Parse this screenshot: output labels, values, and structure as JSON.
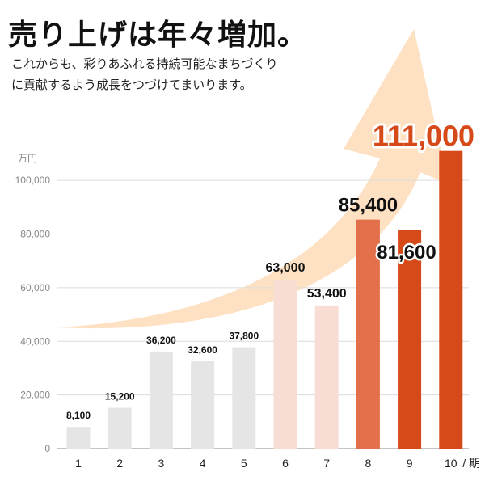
{
  "header": {
    "title": "売り上げは年々増加。",
    "subtitle_line1": "これからも、彩りあふれる持続可能なまちづくり",
    "subtitle_line2": "に貢献するよう成長をつづけてまいります。"
  },
  "chart_data": {
    "type": "bar",
    "ylabel": "万円",
    "xlabel": "期",
    "ylim": [
      0,
      110000
    ],
    "yticks": [
      0,
      20000,
      40000,
      60000,
      80000,
      100000
    ],
    "ytick_labels": [
      "0",
      "20,000",
      "40,000",
      "60,000",
      "80,000",
      "100,000"
    ],
    "grid": true,
    "categories": [
      "1",
      "2",
      "3",
      "4",
      "5",
      "6",
      "7",
      "8",
      "9",
      "10"
    ],
    "values": [
      8100,
      15200,
      36200,
      32600,
      37800,
      63000,
      53400,
      85400,
      81600,
      111000
    ],
    "value_labels": [
      "8,100",
      "15,200",
      "36,200",
      "32,600",
      "37,800",
      "63,000",
      "53,400",
      "85,400",
      "81,600",
      "111,000"
    ],
    "bar_colors": [
      "#e5e5e5",
      "#e5e5e5",
      "#e5e5e5",
      "#e5e5e5",
      "#e5e5e5",
      "#f7ddd3",
      "#f7ddd3",
      "#e3704a",
      "#d64a19",
      "#d64a19"
    ],
    "label_colors": [
      "#111111",
      "#111111",
      "#111111",
      "#111111",
      "#111111",
      "#111111",
      "#111111",
      "#111111",
      "#111111",
      "#d64a19"
    ],
    "arrow_color": "#fde1c2"
  }
}
